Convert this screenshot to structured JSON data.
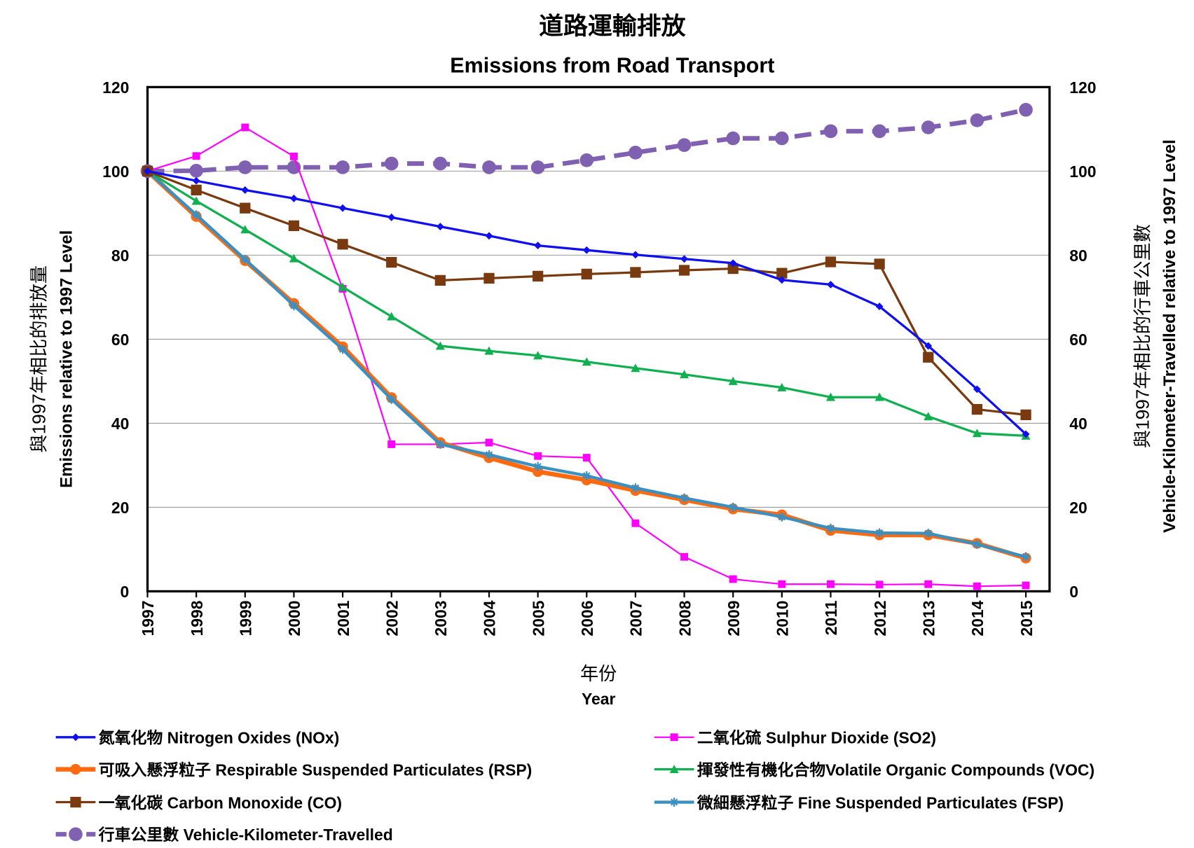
{
  "chart_data": {
    "type": "line",
    "title_zh": "道路運輸排放",
    "title": "Emissions from Road Transport",
    "xlabel_zh": "年份",
    "xlabel": "Year",
    "ylabel_zh": "與1997年相比的排放量",
    "ylabel": "Emissions relative to 1997 Level",
    "y2label_zh": "與1997年相比的行車公里數",
    "y2label": "Vehicle-Kilometer-Travelled relative to 1997 Level",
    "ylim": [
      0,
      120
    ],
    "y2lim": [
      0,
      120
    ],
    "yticks": [
      "0",
      "20",
      "40",
      "60",
      "80",
      "100",
      "120"
    ],
    "grid": true,
    "legend_position": "bottom",
    "x": [
      "1997",
      "1998",
      "1999",
      "2000",
      "2001",
      "2002",
      "2003",
      "2004",
      "2005",
      "2006",
      "2007",
      "2008",
      "2009",
      "2010",
      "2011",
      "2012",
      "2013",
      "2014",
      "2015"
    ],
    "series": [
      {
        "name": "氮氧化物 Nitrogen Oxides (NOx)",
        "color": "#1010ee",
        "marker": "diamond",
        "values": [
          100,
          97.7,
          95.5,
          93.5,
          91.2,
          89,
          86.8,
          84.6,
          82.3,
          81.2,
          80.1,
          79.1,
          78.1,
          74.1,
          73,
          67.8,
          58.4,
          48.1,
          37.4
        ]
      },
      {
        "name": "二氧化硫 Sulphur Dioxide (SO2)",
        "color": "#ff00ff",
        "marker": "square",
        "values": [
          100,
          103.6,
          110.4,
          103.5,
          72,
          35,
          35,
          35.4,
          32.2,
          31.8,
          16.2,
          8.2,
          2.9,
          1.7,
          1.7,
          1.6,
          1.7,
          1.2,
          1.4
        ]
      },
      {
        "name": "可吸入懸浮粒子 Respirable Suspended Particulates (RSP)",
        "color": "#ff6a10",
        "marker": "circle",
        "values": [
          100,
          89.2,
          78.7,
          68.5,
          58.2,
          46.1,
          35.4,
          31.8,
          28.5,
          26.5,
          24,
          21.8,
          19.6,
          18.2,
          14.5,
          13.4,
          13.4,
          11.4,
          7.9
        ]
      },
      {
        "name": "揮發性有機化合物Volatile Organic Compounds (VOC)",
        "color": "#10b050",
        "marker": "triangle",
        "values": [
          100,
          92.9,
          86.1,
          79.2,
          72.4,
          65.4,
          58.4,
          57.2,
          56.1,
          54.6,
          53.1,
          51.6,
          50,
          48.5,
          46.2,
          46.2,
          41.6,
          37.6,
          37
        ]
      },
      {
        "name": "一氧化碳 Carbon Monoxide (CO)",
        "color": "#7a3a10",
        "marker": "bigsquare",
        "values": [
          100,
          95.5,
          91.2,
          87,
          82.6,
          78.3,
          74,
          74.5,
          75,
          75.5,
          75.9,
          76.4,
          76.8,
          75.7,
          78.4,
          77.9,
          55.7,
          43.3,
          42
        ]
      },
      {
        "name": "微細懸浮粒子 Fine Suspended Particulates (FSP)",
        "color": "#3a90c0",
        "marker": "star",
        "values": [
          100,
          89.6,
          79,
          68,
          57.6,
          45.7,
          35,
          32.5,
          29.7,
          27.5,
          24.6,
          22.2,
          20,
          17.7,
          15,
          13.9,
          13.8,
          11.2,
          8.2
        ]
      },
      {
        "name": "行車公里數 Vehicle-Kilometer-Travelled",
        "color": "#8060b0",
        "marker": "dashcircle",
        "values": [
          100,
          100.1,
          100.9,
          100.9,
          100.9,
          101.8,
          101.8,
          100.9,
          100.9,
          102.6,
          104.4,
          106.2,
          107.8,
          107.8,
          109.5,
          109.5,
          110.4,
          112.1,
          114.6
        ]
      }
    ]
  }
}
